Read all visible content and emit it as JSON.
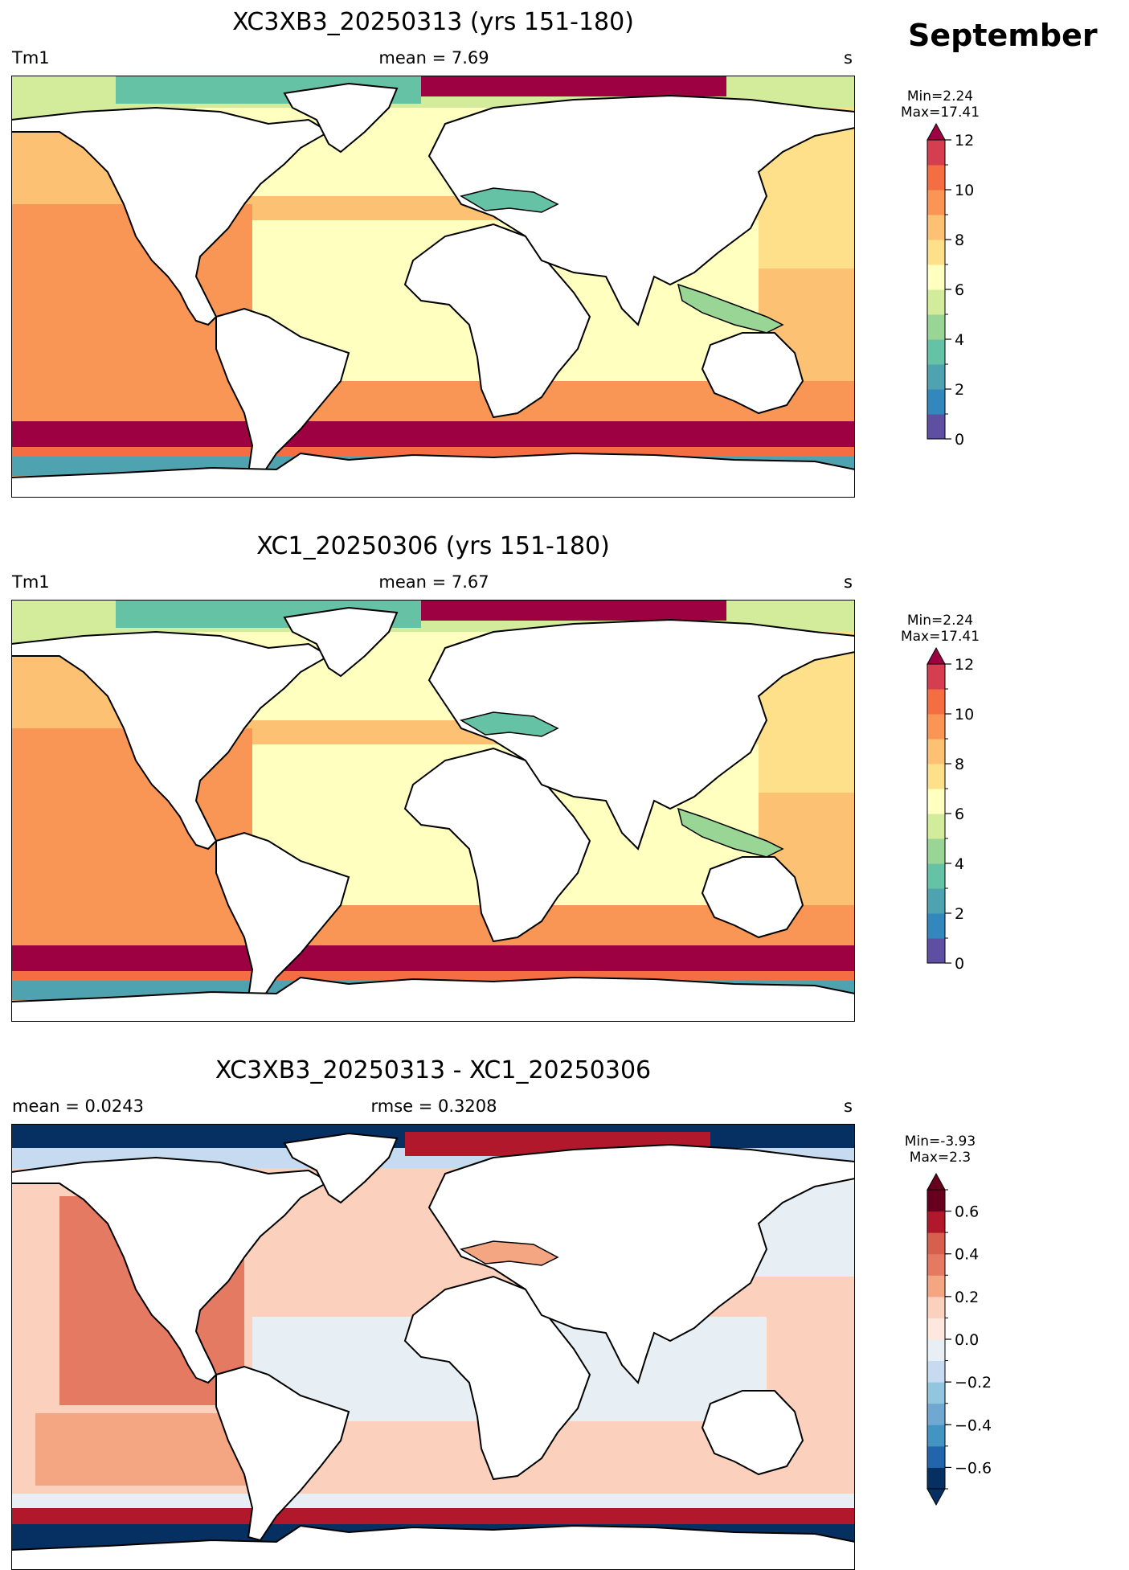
{
  "month": "September",
  "panels": [
    {
      "title": "XC3XB3_20250313 (yrs 151-180)",
      "left_label": "Tm1",
      "center_label": "mean = 7.69",
      "units": "s",
      "min_text": "Min=2.24",
      "max_text": "Max=17.41",
      "colorbar": {
        "vmin": 0,
        "vmax": 12,
        "extend": "max",
        "boundaries": [
          0,
          1,
          2,
          3,
          4,
          5,
          6,
          7,
          8,
          9,
          10,
          11,
          12
        ],
        "colors": [
          "#5e4fa2",
          "#3288bd",
          "#4fa2b0",
          "#66c2a5",
          "#99d594",
          "#d3ec9c",
          "#ffffbf",
          "#fee08b",
          "#fdc173",
          "#f99555",
          "#f46d43",
          "#d53e4f",
          "#9e0142"
        ],
        "ticks": [
          "0",
          "2",
          "4",
          "6",
          "8",
          "10",
          "12"
        ]
      }
    },
    {
      "title": "XC1_20250306 (yrs 151-180)",
      "left_label": "Tm1",
      "center_label": "mean = 7.67",
      "units": "s",
      "min_text": "Min=2.24",
      "max_text": "Max=17.41",
      "colorbar": {
        "vmin": 0,
        "vmax": 12,
        "extend": "max",
        "boundaries": [
          0,
          1,
          2,
          3,
          4,
          5,
          6,
          7,
          8,
          9,
          10,
          11,
          12
        ],
        "colors": [
          "#5e4fa2",
          "#3288bd",
          "#4fa2b0",
          "#66c2a5",
          "#99d594",
          "#d3ec9c",
          "#ffffbf",
          "#fee08b",
          "#fdc173",
          "#f99555",
          "#f46d43",
          "#d53e4f",
          "#9e0142"
        ],
        "ticks": [
          "0",
          "2",
          "4",
          "6",
          "8",
          "10",
          "12"
        ]
      }
    },
    {
      "title": "XC3XB3_20250313 - XC1_20250306",
      "left_label": "mean = 0.0243",
      "center_label": "rmse = 0.3208",
      "units": "s",
      "min_text": "Min=-3.93",
      "max_text": "Max=2.3",
      "colorbar": {
        "vmin": -0.7,
        "vmax": 0.7,
        "extend": "both",
        "boundaries": [
          -0.7,
          -0.6,
          -0.5,
          -0.4,
          -0.3,
          -0.2,
          -0.1,
          0.0,
          0.1,
          0.2,
          0.3,
          0.4,
          0.5,
          0.6,
          0.7
        ],
        "colors": [
          "#053061",
          "#2166ac",
          "#4393c3",
          "#6fa8d0",
          "#92c5de",
          "#c6dbef",
          "#e8eff4",
          "#fde7de",
          "#fbd0bd",
          "#f4a582",
          "#e47a62",
          "#d6604d",
          "#b2182b",
          "#67001f"
        ],
        "ticks": [
          "−0.6",
          "−0.4",
          "−0.2",
          "0.0",
          "0.2",
          "0.4",
          "0.6"
        ]
      }
    }
  ]
}
